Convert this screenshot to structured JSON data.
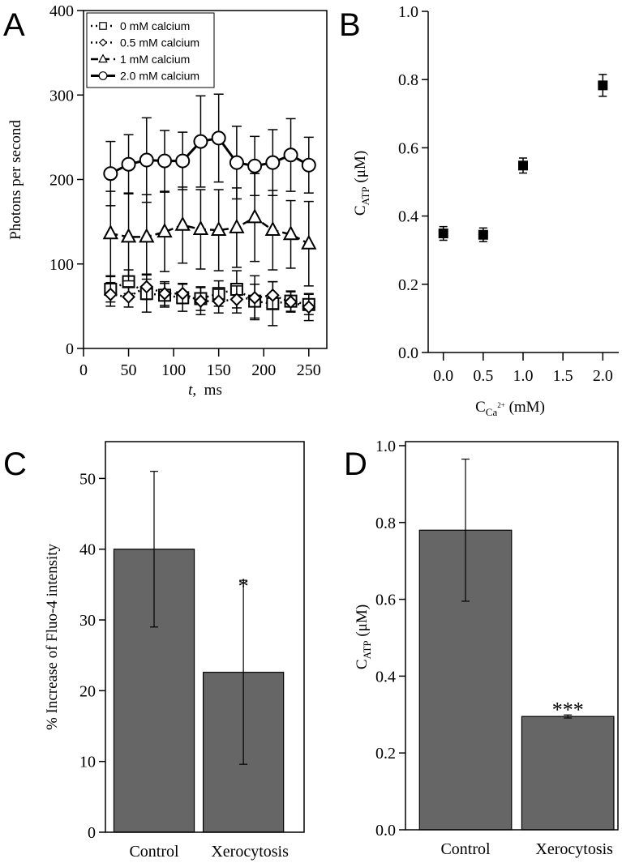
{
  "chart_data": [
    {
      "panel": "A",
      "type": "line",
      "xlabel_italic": "t",
      "xlabel_rest": ",  ms",
      "ylabel": "Photons per second",
      "xlim": [
        0,
        270
      ],
      "ylim": [
        0,
        400
      ],
      "xticks": [
        "0",
        "50",
        "100",
        "150",
        "200",
        "250"
      ],
      "xtick_values": [
        0,
        50,
        100,
        150,
        200,
        250
      ],
      "yticks": [
        "0",
        "100",
        "200",
        "300",
        "400"
      ],
      "ytick_values": [
        0,
        100,
        200,
        300,
        400
      ],
      "legend_position": "top-left",
      "x": [
        30,
        50,
        70,
        90,
        110,
        130,
        150,
        170,
        190,
        210,
        230,
        250
      ],
      "series": [
        {
          "name": "0 mM calcium",
          "marker": "square",
          "line": "dotted",
          "values": [
            70,
            79,
            65,
            63,
            60,
            59,
            65,
            70,
            56,
            53,
            56,
            52
          ],
          "errors": [
            15,
            14,
            22,
            14,
            16,
            14,
            15,
            22,
            20,
            26,
            12,
            12
          ]
        },
        {
          "name": "0.5 mM calcium",
          "marker": "diamond",
          "line": "dotted",
          "values": [
            64,
            61,
            73,
            65,
            65,
            56,
            56,
            58,
            60,
            63,
            55,
            49
          ],
          "errors": [
            14,
            12,
            15,
            14,
            12,
            16,
            14,
            16,
            26,
            16,
            12,
            16
          ]
        },
        {
          "name": "1 mM calcium",
          "marker": "triangle",
          "line": "dashed",
          "values": [
            136,
            132,
            132,
            138,
            146,
            141,
            140,
            143,
            155,
            140,
            135,
            124
          ],
          "errors": [
            50,
            52,
            50,
            47,
            45,
            47,
            48,
            47,
            52,
            47,
            40,
            50
          ]
        },
        {
          "name": "2.0 mM calcium",
          "marker": "circle",
          "line": "solid",
          "values": [
            207,
            218,
            223,
            222,
            222,
            245,
            249,
            220,
            216,
            220,
            229,
            217
          ],
          "errors": [
            38,
            35,
            50,
            36,
            34,
            54,
            52,
            43,
            35,
            39,
            43,
            33
          ]
        }
      ]
    },
    {
      "panel": "B",
      "type": "scatter",
      "xlabel_main": "C",
      "xlabel_sub": "Ca",
      "xlabel_sup": "2+",
      "xlabel_unit": " (mM)",
      "ylabel_main": "C",
      "ylabel_sub": "ATP",
      "ylabel_unit": " (μM)",
      "xlim": [
        -0.19,
        2.2
      ],
      "ylim": [
        0,
        1.0
      ],
      "xticks": [
        "0.0",
        "0.5",
        "1.0",
        "1.5",
        "2.0"
      ],
      "xtick_values": [
        0,
        0.5,
        1.0,
        1.5,
        2.0
      ],
      "yticks": [
        "0.0",
        "0.2",
        "0.4",
        "0.6",
        "0.8",
        "1.0"
      ],
      "ytick_values": [
        0,
        0.2,
        0.4,
        0.6,
        0.8,
        1.0
      ],
      "x": [
        0,
        0.5,
        1.0,
        2.0
      ],
      "values": [
        0.349,
        0.345,
        0.548,
        0.783
      ],
      "errors": [
        0.02,
        0.02,
        0.022,
        0.032
      ]
    },
    {
      "panel": "C",
      "type": "bar",
      "ylabel": "% Increase of Fluo-4 intensity",
      "categories": [
        "Control",
        "Xerocytosis"
      ],
      "values": [
        40,
        22.6
      ],
      "errors": [
        11,
        13
      ],
      "annotations": [
        "",
        "*"
      ],
      "ylim": [
        0,
        55.2
      ],
      "yticks": [
        "0",
        "10",
        "20",
        "30",
        "40",
        "50"
      ],
      "ytick_values": [
        0,
        10,
        20,
        30,
        40,
        50
      ],
      "bar_color": "#666666"
    },
    {
      "panel": "D",
      "type": "bar",
      "ylabel_main": "C",
      "ylabel_sub": "ATP",
      "ylabel_unit": " (μM)",
      "categories": [
        "Control",
        "Xerocytosis"
      ],
      "values": [
        0.78,
        0.295
      ],
      "errors": [
        0.185,
        0.004
      ],
      "annotations": [
        "",
        "***"
      ],
      "ylim": [
        0,
        1.0105
      ],
      "yticks": [
        "0.0",
        "0.2",
        "0.4",
        "0.6",
        "0.8",
        "1.0"
      ],
      "ytick_values": [
        0,
        0.2,
        0.4,
        0.6,
        0.8,
        1.0
      ],
      "bar_color": "#666666"
    }
  ]
}
